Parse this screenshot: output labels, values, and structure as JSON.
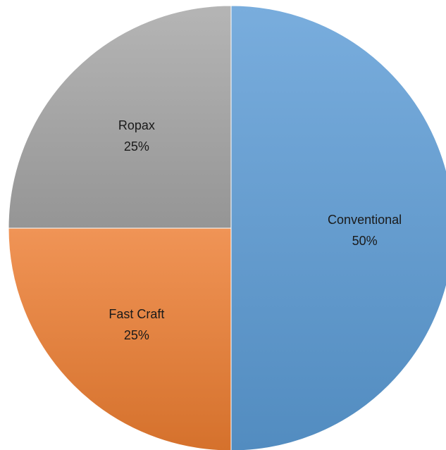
{
  "chart_data": {
    "type": "pie",
    "categories": [
      "Conventional",
      "Fast Craft",
      "Ropax"
    ],
    "values": [
      50,
      25,
      25
    ],
    "value_labels": [
      "50%",
      "25%",
      "25%"
    ],
    "colors": [
      "#5b9bd5",
      "#ed7d31",
      "#a5a5a5"
    ],
    "start_angle_deg": 0,
    "direction": "clockwise",
    "legend": "none",
    "title": ""
  }
}
